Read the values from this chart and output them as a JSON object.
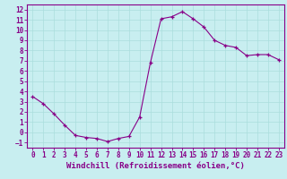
{
  "x": [
    0,
    1,
    2,
    3,
    4,
    5,
    6,
    7,
    8,
    9,
    10,
    11,
    12,
    13,
    14,
    15,
    16,
    17,
    18,
    19,
    20,
    21,
    22,
    23
  ],
  "y": [
    3.5,
    2.8,
    1.8,
    0.7,
    -0.3,
    -0.5,
    -0.6,
    -0.9,
    -0.6,
    -0.4,
    1.5,
    6.8,
    11.1,
    11.3,
    11.8,
    11.1,
    10.3,
    9.0,
    8.5,
    8.3,
    7.5,
    7.6,
    7.6,
    7.1
  ],
  "line_color": "#880088",
  "marker": "+",
  "marker_color": "#880088",
  "bg_color": "#c8eef0",
  "grid_color": "#aadddd",
  "xlabel": "Windchill (Refroidissement éolien,°C)",
  "xlabel_color": "#880088",
  "tick_color": "#880088",
  "spine_color": "#880088",
  "ylim": [
    -1.5,
    12.5
  ],
  "xlim": [
    -0.5,
    23.5
  ],
  "yticks": [
    -1,
    0,
    1,
    2,
    3,
    4,
    5,
    6,
    7,
    8,
    9,
    10,
    11,
    12
  ],
  "xticks": [
    0,
    1,
    2,
    3,
    4,
    5,
    6,
    7,
    8,
    9,
    10,
    11,
    12,
    13,
    14,
    15,
    16,
    17,
    18,
    19,
    20,
    21,
    22,
    23
  ],
  "tick_fontsize": 5.5,
  "xlabel_fontsize": 6.5
}
